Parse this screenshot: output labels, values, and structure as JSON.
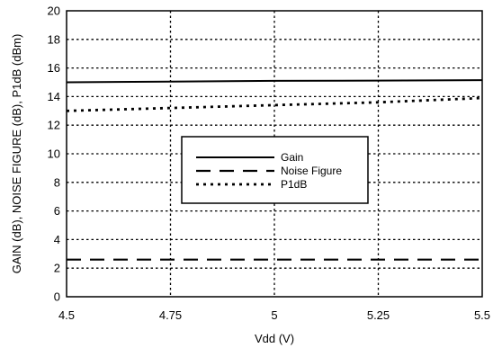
{
  "chart_data": {
    "type": "line",
    "title": "",
    "xlabel": "Vdd (V)",
    "ylabel": "GAIN (dB), NOISE FIGURE (dB), P1dB (dBm)",
    "xlim": [
      4.5,
      5.5
    ],
    "ylim": [
      0,
      20
    ],
    "xticks": [
      4.5,
      4.75,
      5,
      5.25,
      5.5
    ],
    "xtick_labels": [
      "4.5",
      "4.75",
      "5",
      "5.25",
      "5.5"
    ],
    "yticks": [
      0,
      2,
      4,
      6,
      8,
      10,
      12,
      14,
      16,
      18,
      20
    ],
    "ytick_labels": [
      "0",
      "2",
      "4",
      "6",
      "8",
      "10",
      "12",
      "14",
      "16",
      "18",
      "20"
    ],
    "grid": true,
    "legend_position": "center-right",
    "series": [
      {
        "name": "Gain",
        "style": "solid",
        "color": "#000000",
        "x": [
          4.5,
          4.75,
          5,
          5.25,
          5.5
        ],
        "y": [
          15.0,
          15.05,
          15.1,
          15.12,
          15.15
        ]
      },
      {
        "name": "Noise Figure",
        "style": "dashed",
        "color": "#000000",
        "x": [
          4.5,
          4.75,
          5,
          5.25,
          5.5
        ],
        "y": [
          2.6,
          2.6,
          2.6,
          2.6,
          2.6
        ]
      },
      {
        "name": "P1dB",
        "style": "dotted",
        "color": "#000000",
        "x": [
          4.5,
          4.75,
          5,
          5.25,
          5.5
        ],
        "y": [
          13.0,
          13.2,
          13.4,
          13.6,
          13.9
        ]
      }
    ]
  }
}
